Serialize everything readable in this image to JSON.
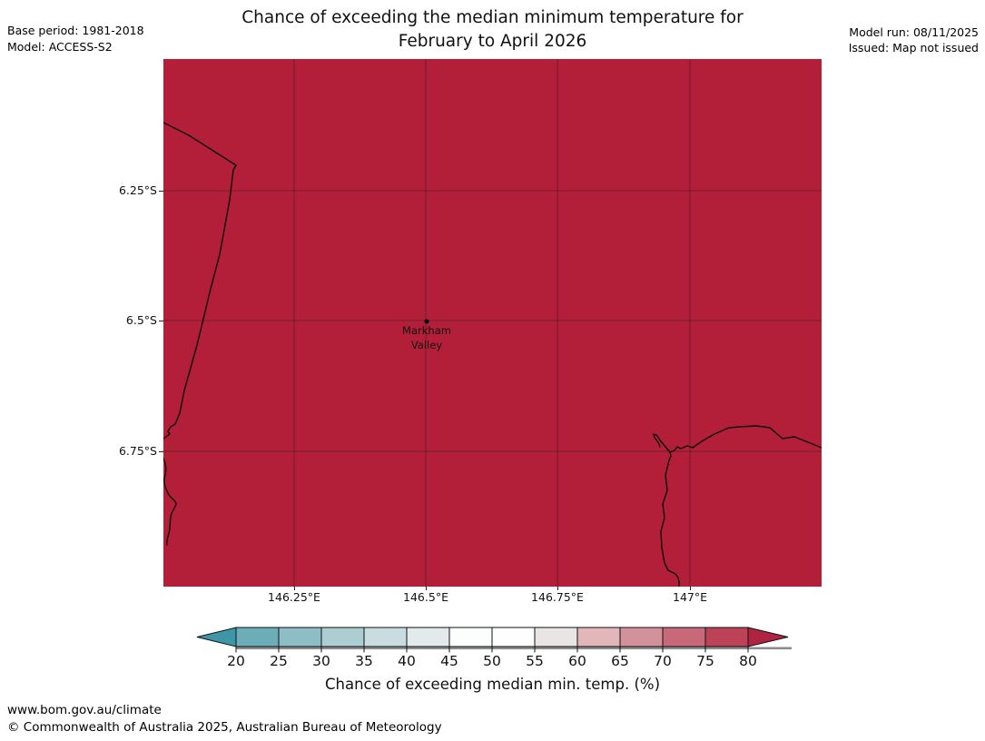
{
  "header": {
    "title_line1": "Chance of exceeding the median minimum temperature for",
    "title_line2": "February to April 2026",
    "base_period": "Base period: 1981-2018",
    "model": "Model: ACCESS-S2",
    "model_run": "Model run: 08/11/2025",
    "issued": "Issued: Map not issued"
  },
  "map": {
    "fill_color": "#b31f39",
    "coastline_color": "#0a0a0a",
    "gridline_color": "#1a1a1a",
    "region_chance_display": "> 80 (entire visible area shown in the >80% colour)",
    "marker": {
      "label_line1": "Markham",
      "label_line2": "Valley"
    },
    "y_tick_labels": [
      "6.25°S",
      "6.5°S",
      "6.75°S"
    ],
    "x_tick_labels": [
      "146.25°E",
      "146.5°E",
      "146.75°E",
      "147°E"
    ]
  },
  "colorbar": {
    "caption": "Chance of exceeding median min. temp. (%)",
    "tick_labels": [
      "20",
      "25",
      "30",
      "35",
      "40",
      "45",
      "50",
      "55",
      "60",
      "65",
      "70",
      "75",
      "80"
    ],
    "left_arrow_color": "#3e96a6",
    "right_arrow_color": "#b12441",
    "segment_colors": [
      "#6cadb8",
      "#8dbec6",
      "#accdd2",
      "#c9dcdf",
      "#e2eaeb",
      "#fcfdfd",
      "#fefefe",
      "#e9e5e4",
      "#e2b7bc",
      "#d2919b",
      "#c76979",
      "#bc4257"
    ],
    "outline_color": "#111111",
    "shadow_color": "#8c8c8c"
  },
  "footer": {
    "url": "www.bom.gov.au/climate",
    "copyright": "© Commonwealth of Australia 2025, Australian Bureau of Meteorology"
  }
}
